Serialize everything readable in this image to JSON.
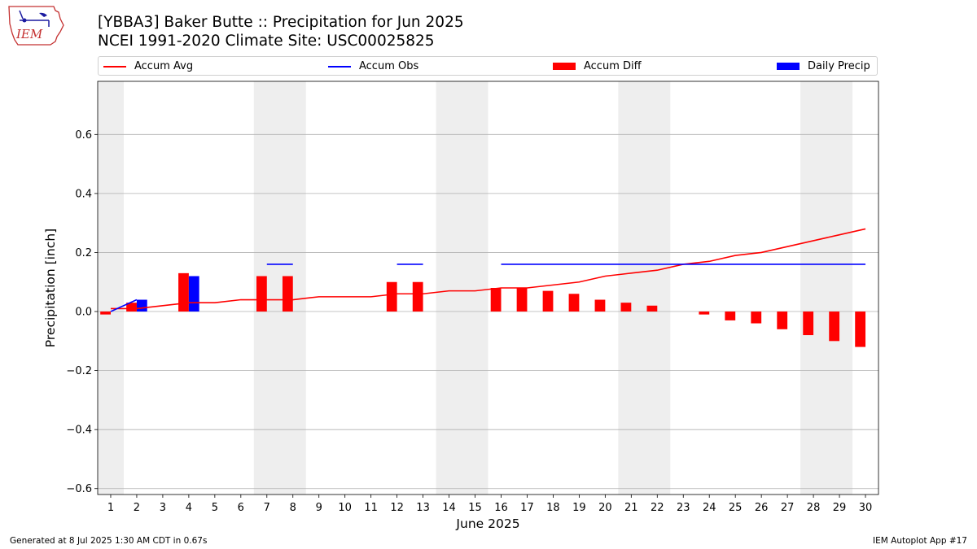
{
  "header": {
    "title_line1": "[YBBA3] Baker Butte :: Precipitation for Jun 2025",
    "title_line2": "NCEI 1991-2020 Climate Site: USC00025825"
  },
  "logo": {
    "text": "IEM"
  },
  "legend": {
    "items": [
      {
        "label": "Accum Avg",
        "kind": "line",
        "color": "#ff0000"
      },
      {
        "label": "Accum Obs",
        "kind": "line",
        "color": "#0000ff"
      },
      {
        "label": "Accum Diff",
        "kind": "patch",
        "color": "#ff0000"
      },
      {
        "label": "Daily Precip",
        "kind": "patch",
        "color": "#0000ff"
      }
    ]
  },
  "footer": {
    "left": "Generated at 8 Jul 2025 1:30 AM CDT in 0.67s",
    "right": "IEM Autoplot App #17"
  },
  "chart_data": {
    "type": "bar",
    "title": "[YBBA3] Baker Butte :: Precipitation for Jun 2025",
    "xlabel": "June 2025",
    "ylabel": "Precipitation [inch]",
    "ylim": [
      -0.62,
      0.78
    ],
    "xlim": [
      0.5,
      30.5
    ],
    "yticks": [
      -0.6,
      -0.4,
      -0.2,
      0.0,
      0.2,
      0.4,
      0.6
    ],
    "ytick_labels": [
      "−0.6",
      "−0.4",
      "−0.2",
      "0.0",
      "0.2",
      "0.4",
      "0.6"
    ],
    "days": [
      1,
      2,
      3,
      4,
      5,
      6,
      7,
      8,
      9,
      10,
      11,
      12,
      13,
      14,
      15,
      16,
      17,
      18,
      19,
      20,
      21,
      22,
      23,
      24,
      25,
      26,
      27,
      28,
      29,
      30
    ],
    "weekend_spans": [
      [
        0.5,
        1.5
      ],
      [
        6.5,
        8.5
      ],
      [
        13.5,
        15.5
      ],
      [
        20.5,
        22.5
      ],
      [
        27.5,
        29.5
      ]
    ],
    "grid": "horizontal",
    "colors": {
      "avg": "#ff0000",
      "obs": "#0000ff",
      "diff": "#ff0000",
      "daily": "#0000ff",
      "weekend": "#eeeeee",
      "grid": "#b0b0b0"
    },
    "series": [
      {
        "name": "Accum Avg",
        "kind": "line",
        "values": [
          0.01,
          0.01,
          0.02,
          0.03,
          0.03,
          0.04,
          0.04,
          0.04,
          0.05,
          0.05,
          0.05,
          0.06,
          0.06,
          0.07,
          0.07,
          0.08,
          0.08,
          0.09,
          0.1,
          0.12,
          0.13,
          0.14,
          0.16,
          0.17,
          0.19,
          0.2,
          0.22,
          0.24,
          0.26,
          0.28
        ]
      },
      {
        "name": "Accum Obs",
        "kind": "line",
        "values": [
          0.0,
          0.04,
          null,
          null,
          null,
          null,
          0.16,
          0.16,
          null,
          null,
          null,
          0.16,
          0.16,
          null,
          null,
          0.16,
          0.16,
          0.16,
          0.16,
          0.16,
          0.16,
          0.16,
          0.16,
          0.16,
          0.16,
          0.16,
          0.16,
          0.16,
          0.16,
          0.16
        ]
      },
      {
        "name": "Accum Diff",
        "kind": "bar",
        "values": [
          -0.01,
          0.03,
          null,
          0.13,
          null,
          null,
          0.12,
          0.12,
          null,
          null,
          null,
          0.1,
          0.1,
          null,
          null,
          0.08,
          0.08,
          0.07,
          0.06,
          0.04,
          0.03,
          0.02,
          0.0,
          -0.01,
          -0.03,
          -0.04,
          -0.06,
          -0.08,
          -0.1,
          -0.12
        ]
      },
      {
        "name": "Daily Precip",
        "kind": "bar",
        "values": [
          0.0,
          0.04,
          0.0,
          0.12,
          0.0,
          0.0,
          0.0,
          0.0,
          0.0,
          0.0,
          0.0,
          0.0,
          0.0,
          0.0,
          0.0,
          0.0,
          0.0,
          0.0,
          0.0,
          0.0,
          0.0,
          0.0,
          0.0,
          0.0,
          0.0,
          0.0,
          0.0,
          0.0,
          0.0,
          0.0
        ]
      }
    ]
  }
}
